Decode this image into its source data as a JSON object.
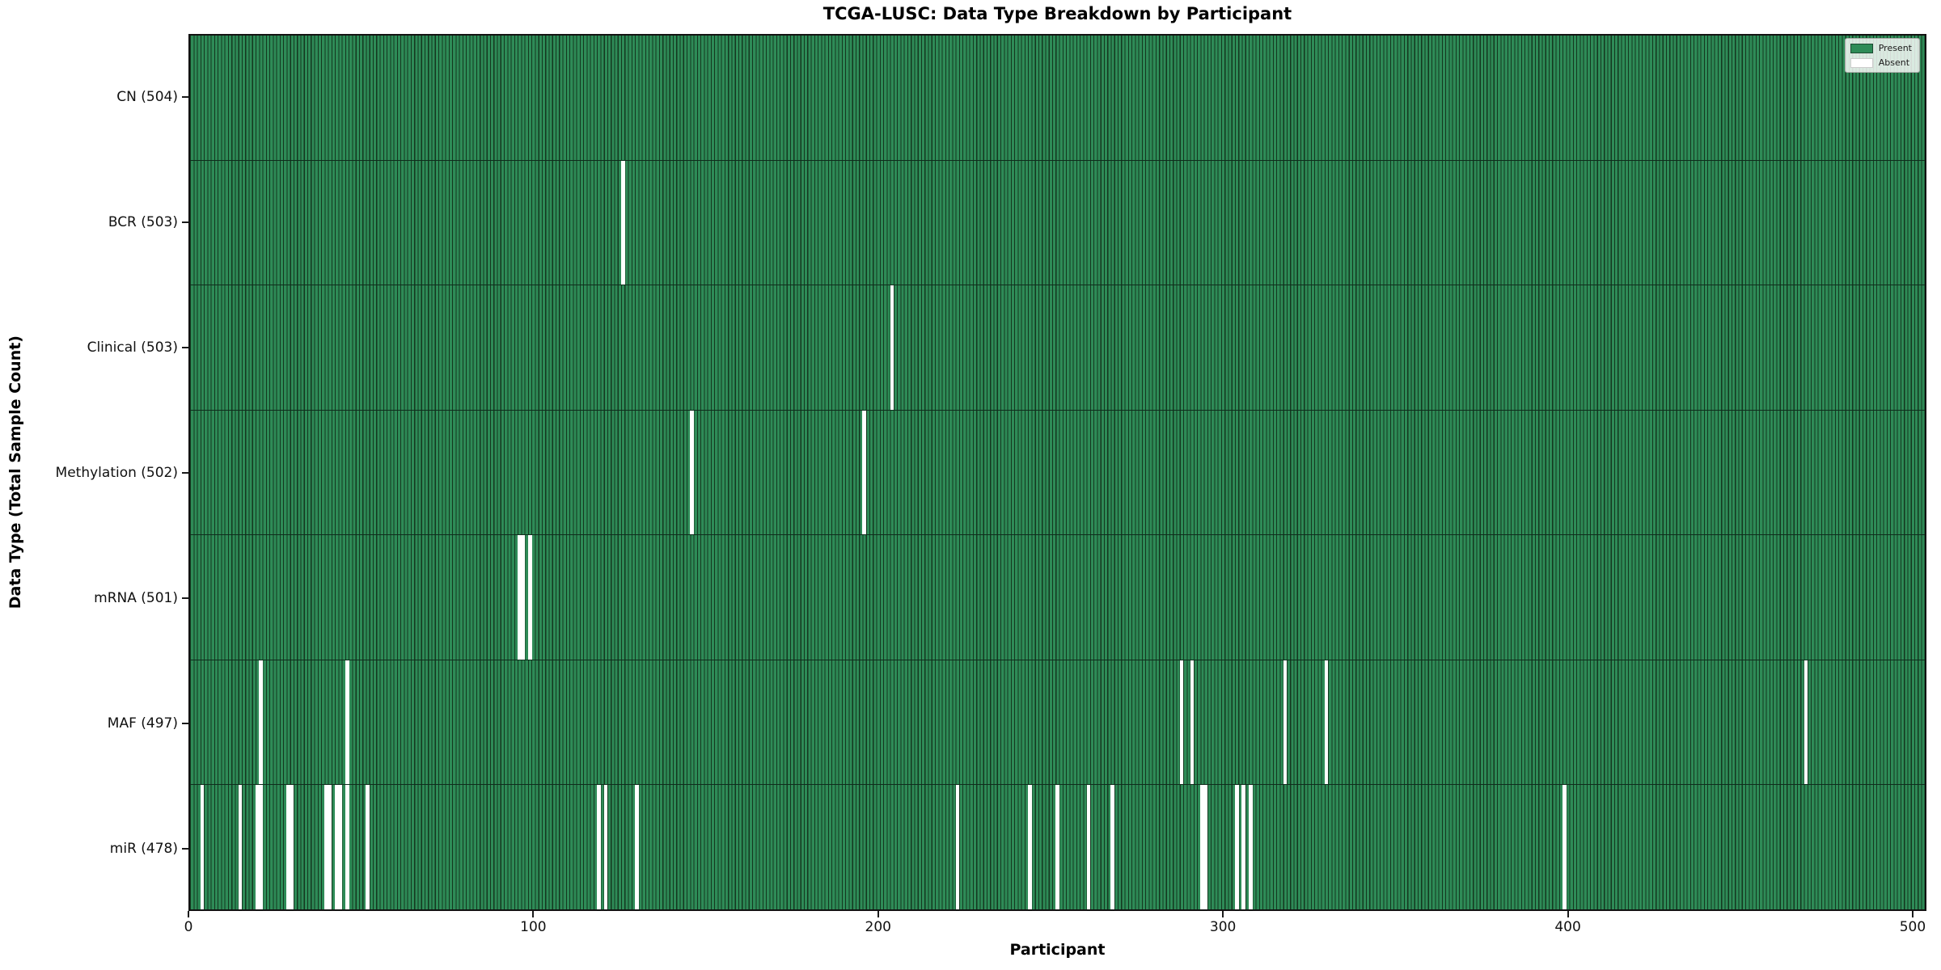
{
  "chart_data": {
    "type": "heatmap",
    "title": "TCGA-LUSC: Data Type Breakdown by Participant",
    "xlabel": "Participant",
    "ylabel": "Data Type (Total Sample Count)",
    "x_ticks": [
      0,
      100,
      200,
      300,
      400,
      500
    ],
    "xlim": [
      0,
      504
    ],
    "n_participants": 504,
    "grid": false,
    "legend": {
      "position": "upper right",
      "entries": [
        {
          "label": "Present",
          "color": "#2e8b57"
        },
        {
          "label": "Absent",
          "color": "#ffffff"
        }
      ]
    },
    "colors": {
      "present": "#2e8b57",
      "bar_edge": "#14371f",
      "absent": "#ffffff",
      "axis": "#1a1a1a"
    },
    "rows": [
      {
        "data_type": "CN",
        "label": "CN (504)",
        "total_samples": 504,
        "absent_participants": []
      },
      {
        "data_type": "BCR",
        "label": "BCR (503)",
        "total_samples": 503,
        "absent_participants": [
          125
        ]
      },
      {
        "data_type": "Clinical",
        "label": "Clinical (503)",
        "total_samples": 503,
        "absent_participants": [
          203
        ]
      },
      {
        "data_type": "Methylation",
        "label": "Methylation (502)",
        "total_samples": 502,
        "absent_participants": [
          145,
          195
        ]
      },
      {
        "data_type": "mRNA",
        "label": "mRNA (501)",
        "total_samples": 501,
        "absent_participants": [
          95,
          96,
          98
        ]
      },
      {
        "data_type": "MAF",
        "label": "MAF (497)",
        "total_samples": 497,
        "absent_participants": [
          20,
          45,
          287,
          290,
          317,
          329,
          468
        ]
      },
      {
        "data_type": "miR",
        "label": "miR (478)",
        "total_samples": 478,
        "absent_participants": [
          3,
          14,
          19,
          20,
          28,
          29,
          39,
          40,
          42,
          43,
          45,
          51,
          118,
          120,
          129,
          222,
          243,
          251,
          260,
          267,
          293,
          294,
          303,
          305,
          307,
          398
        ]
      }
    ]
  }
}
